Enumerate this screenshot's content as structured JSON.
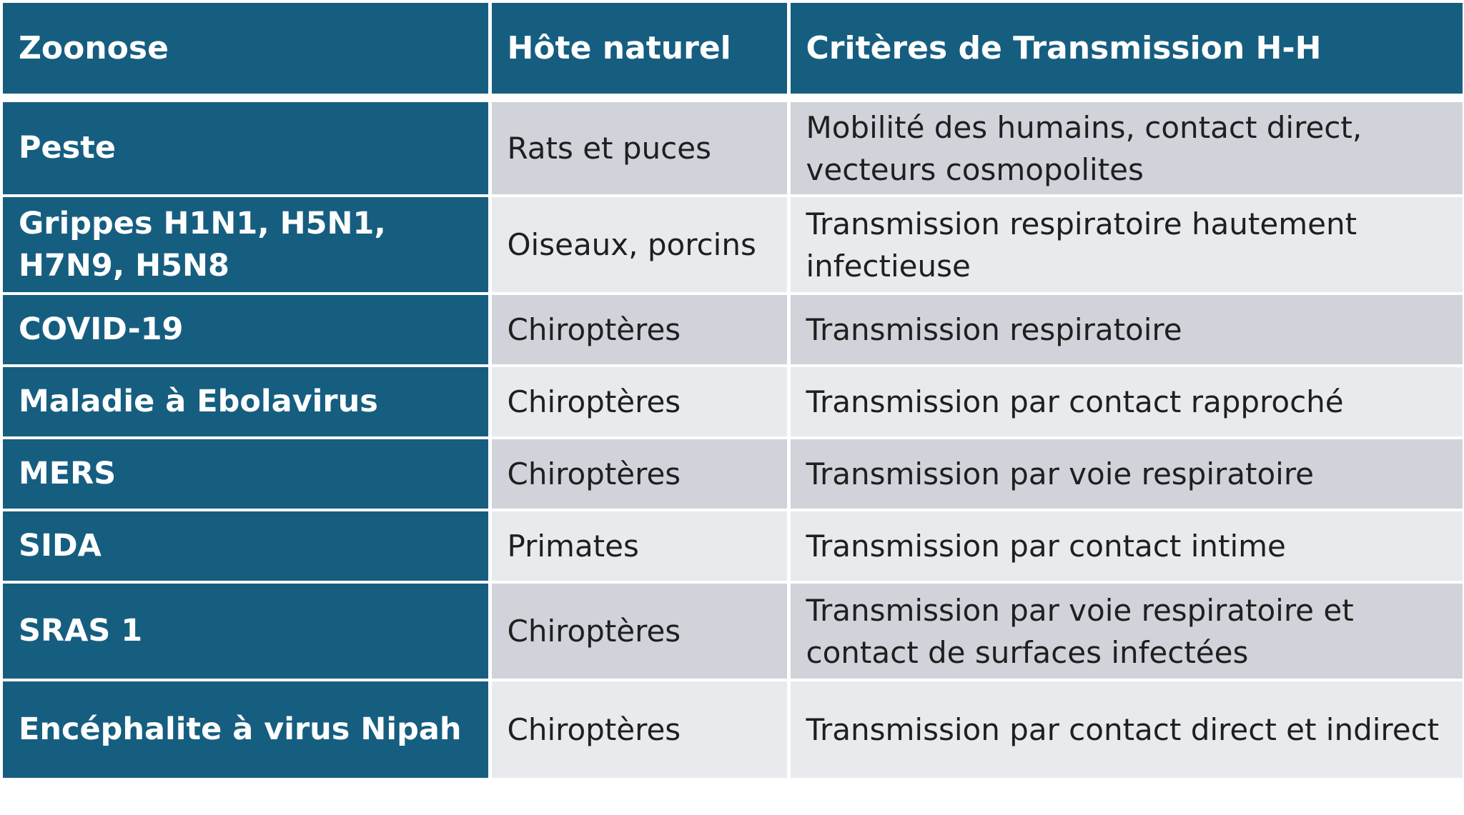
{
  "table": {
    "headers": [
      "Zoonose",
      "Hôte naturel",
      "Critères de Transmission H-H"
    ],
    "rows": [
      {
        "zoonose": "Peste",
        "hote": "Rats et puces",
        "criteres": "Mobilité des humains, contact direct, vecteurs cosmopolites"
      },
      {
        "zoonose": "Grippes H1N1, H5N1, H7N9, H5N8",
        "hote": "Oiseaux, porcins",
        "criteres": "Transmission respiratoire hautement infectieuse"
      },
      {
        "zoonose": "COVID-19",
        "hote": "Chiroptères",
        "criteres": "Transmission respiratoire"
      },
      {
        "zoonose": "Maladie à Ebolavirus",
        "hote": "Chiroptères",
        "criteres": "Transmission par contact rapproché"
      },
      {
        "zoonose": "MERS",
        "hote": "Chiroptères",
        "criteres": "Transmission par voie respiratoire"
      },
      {
        "zoonose": "SIDA",
        "hote": "Primates",
        "criteres": "Transmission par contact intime"
      },
      {
        "zoonose": "SRAS 1",
        "hote": "Chiroptères",
        "criteres": "Transmission par voie respiratoire et contact de surfaces infectées"
      },
      {
        "zoonose": "Encéphalite à virus Nipah",
        "hote": "Chiroptères",
        "criteres": "Transmission par contact direct et indirect"
      }
    ]
  },
  "colors": {
    "header_bg": "#165e80",
    "first_column_bg": "#165e80",
    "row_odd_bg": "#d0d3da",
    "row_even_bg": "#e8eaee",
    "separator": "#ffffff"
  }
}
